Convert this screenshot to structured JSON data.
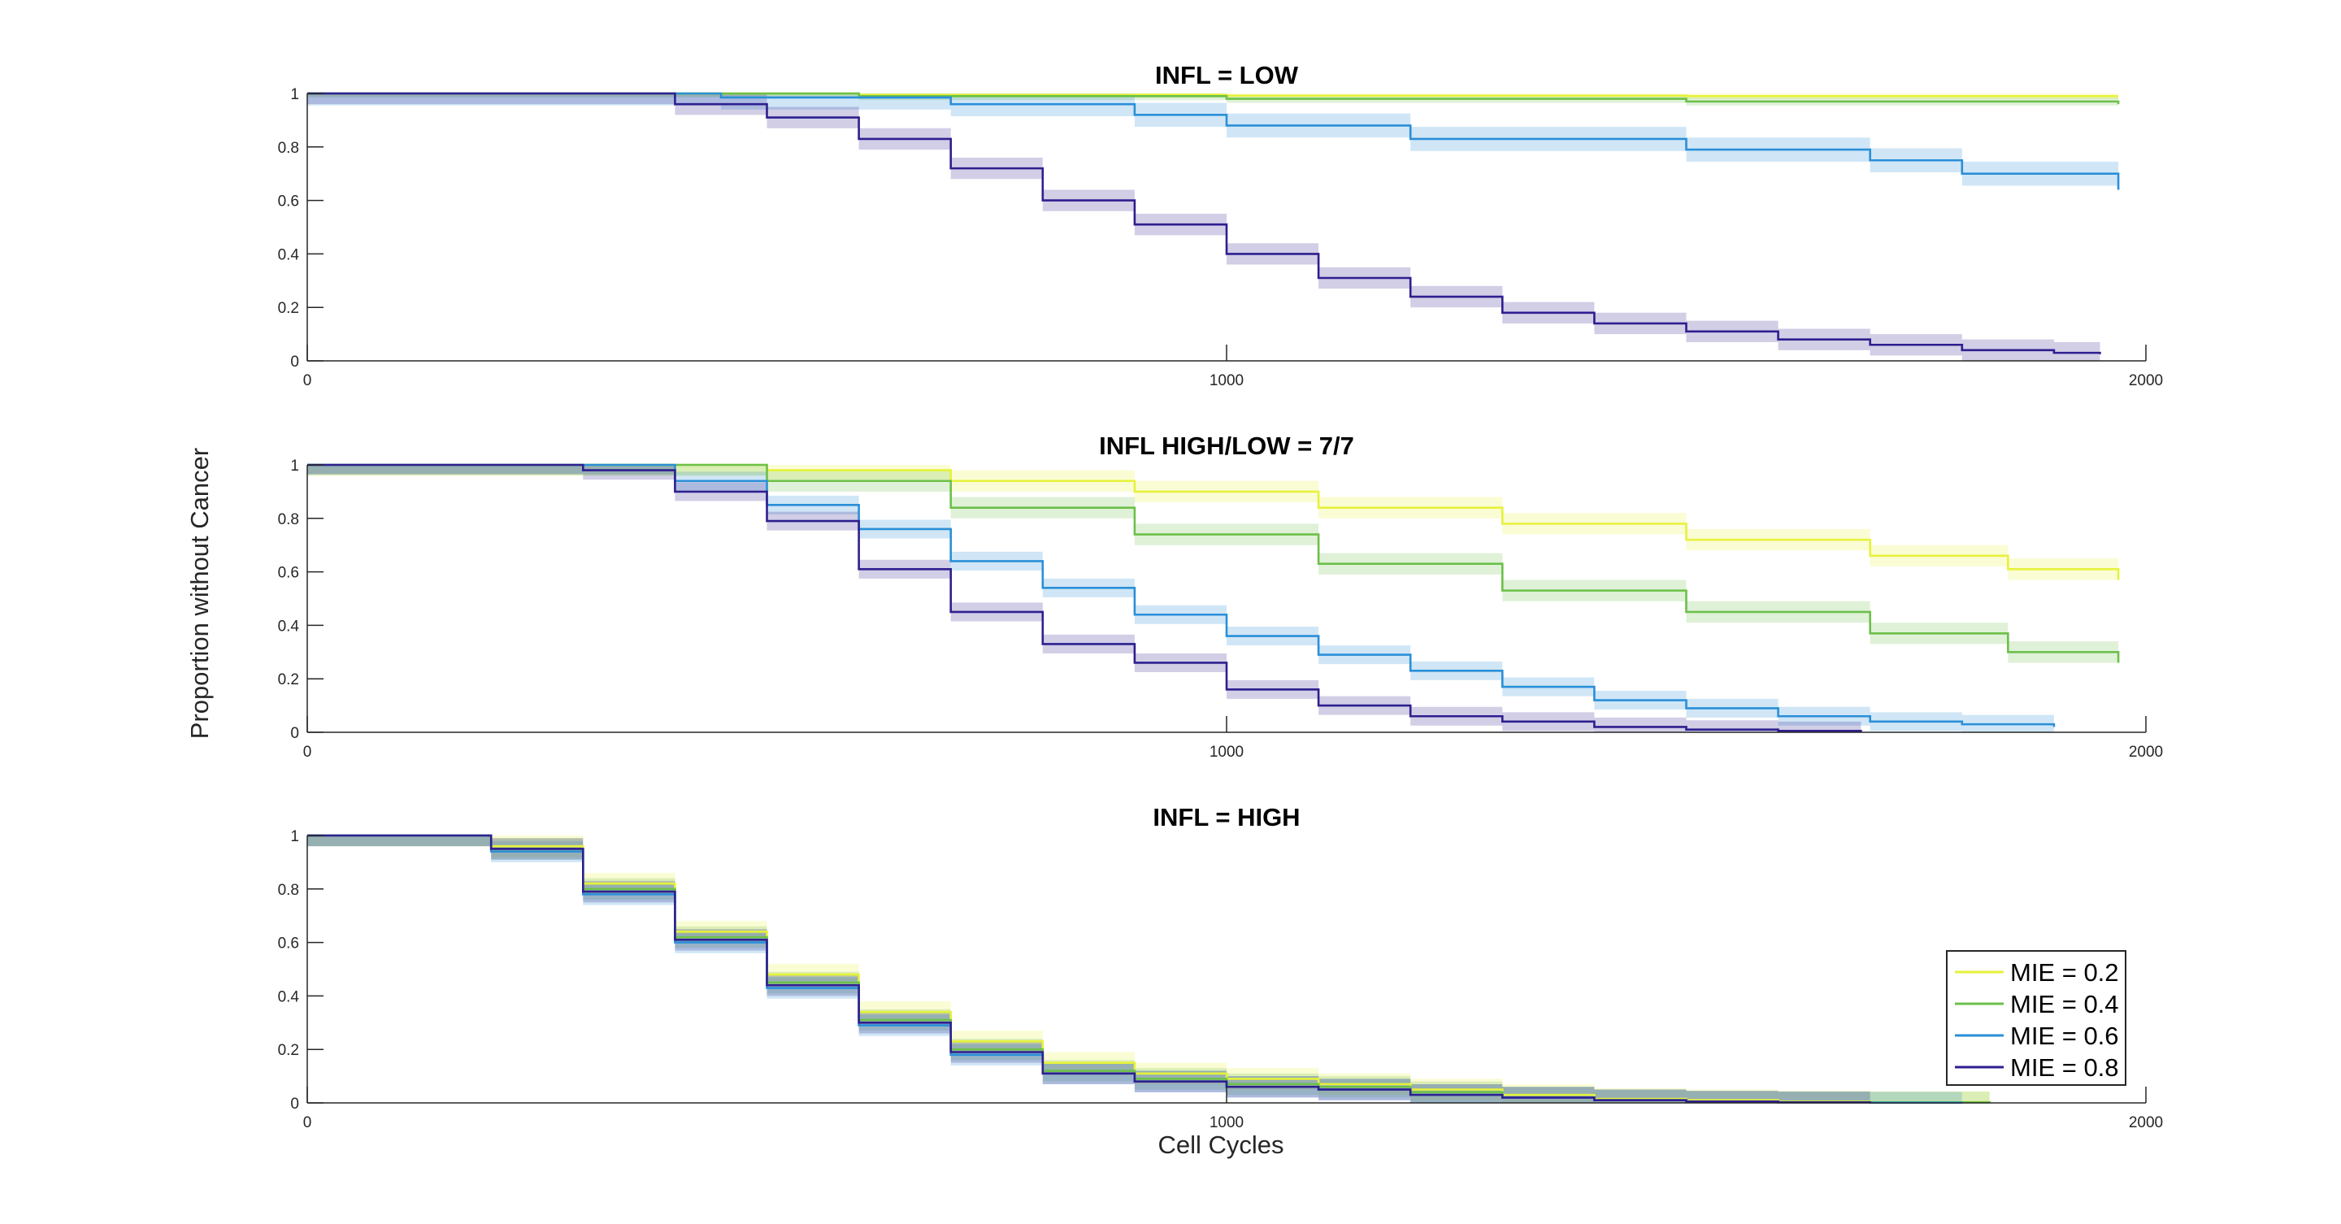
{
  "figure": {
    "ylabel": "Proportion without Cancer",
    "xlabel": "Cell Cycles"
  },
  "colors": {
    "MIE = 0.2": "#e6f23a",
    "MIE = 0.4": "#6cc04a",
    "MIE = 0.6": "#2a8fd8",
    "MIE = 0.8": "#2e1f8f"
  },
  "legend": {
    "location": "bottom-right of bottom panel",
    "entries": [
      "MIE = 0.2",
      "MIE = 0.4",
      "MIE = 0.6",
      "MIE = 0.8"
    ]
  },
  "chart_data": [
    {
      "type": "line",
      "title": "INFL = LOW",
      "xlim": [
        0,
        2000
      ],
      "ylim": [
        0,
        1
      ],
      "xticks": [
        "0",
        "1000",
        "2000"
      ],
      "yticks": [
        "0",
        "0.2",
        "0.4",
        "0.6",
        "0.8",
        "1"
      ],
      "series": [
        {
          "name": "MIE = 0.2",
          "x": [
            0,
            300,
            600,
            1000,
            1500,
            1970
          ],
          "y": [
            1,
            1,
            0.995,
            0.992,
            0.99,
            0.99
          ],
          "band": 0.01
        },
        {
          "name": "MIE = 0.4",
          "x": [
            0,
            300,
            600,
            1000,
            1500,
            1970
          ],
          "y": [
            1,
            1,
            0.99,
            0.98,
            0.97,
            0.96
          ],
          "band": 0.015
        },
        {
          "name": "MIE = 0.6",
          "x": [
            0,
            300,
            450,
            700,
            900,
            1000,
            1200,
            1500,
            1700,
            1800,
            1970
          ],
          "y": [
            1,
            1,
            0.985,
            0.96,
            0.92,
            0.88,
            0.83,
            0.79,
            0.75,
            0.7,
            0.64
          ],
          "band": 0.045
        },
        {
          "name": "MIE = 0.8",
          "x": [
            0,
            300,
            400,
            500,
            600,
            700,
            800,
            900,
            1000,
            1100,
            1200,
            1300,
            1400,
            1500,
            1600,
            1700,
            1800,
            1900,
            1950
          ],
          "y": [
            1,
            1,
            0.96,
            0.91,
            0.83,
            0.72,
            0.6,
            0.51,
            0.4,
            0.31,
            0.24,
            0.18,
            0.14,
            0.11,
            0.08,
            0.06,
            0.04,
            0.03,
            0.025
          ],
          "band": 0.04
        }
      ]
    },
    {
      "type": "line",
      "title": "INFL HIGH/LOW = 7/7",
      "xlim": [
        0,
        2000
      ],
      "ylim": [
        0,
        1
      ],
      "xticks": [
        "0",
        "1000",
        "2000"
      ],
      "yticks": [
        "0",
        "0.2",
        "0.4",
        "0.6",
        "0.8",
        "1"
      ],
      "series": [
        {
          "name": "MIE = 0.2",
          "x": [
            0,
            330,
            500,
            700,
            900,
            1100,
            1300,
            1500,
            1700,
            1850,
            1970
          ],
          "y": [
            1,
            1,
            0.98,
            0.94,
            0.9,
            0.84,
            0.78,
            0.72,
            0.66,
            0.61,
            0.57
          ],
          "band": 0.04
        },
        {
          "name": "MIE = 0.4",
          "x": [
            0,
            330,
            500,
            700,
            900,
            1100,
            1300,
            1500,
            1700,
            1850,
            1970
          ],
          "y": [
            1,
            1,
            0.94,
            0.84,
            0.74,
            0.63,
            0.53,
            0.45,
            0.37,
            0.3,
            0.26
          ],
          "band": 0.04
        },
        {
          "name": "MIE = 0.6",
          "x": [
            0,
            300,
            400,
            500,
            600,
            700,
            800,
            900,
            1000,
            1100,
            1200,
            1300,
            1400,
            1500,
            1600,
            1700,
            1800,
            1900
          ],
          "y": [
            1,
            1,
            0.94,
            0.85,
            0.76,
            0.64,
            0.54,
            0.44,
            0.36,
            0.29,
            0.23,
            0.17,
            0.12,
            0.09,
            0.06,
            0.04,
            0.03,
            0.02
          ],
          "band": 0.035
        },
        {
          "name": "MIE = 0.8",
          "x": [
            0,
            170,
            300,
            400,
            500,
            600,
            700,
            800,
            900,
            1000,
            1100,
            1200,
            1300,
            1400,
            1500,
            1600,
            1690
          ],
          "y": [
            1,
            1,
            0.98,
            0.9,
            0.79,
            0.61,
            0.45,
            0.33,
            0.26,
            0.16,
            0.1,
            0.06,
            0.04,
            0.02,
            0.01,
            0.005,
            0.0
          ],
          "band": 0.035
        }
      ]
    },
    {
      "type": "line",
      "title": "INFL = HIGH",
      "xlim": [
        0,
        2000
      ],
      "ylim": [
        0,
        1
      ],
      "xticks": [
        "0",
        "1000",
        "2000"
      ],
      "yticks": [
        "0",
        "0.2",
        "0.4",
        "0.6",
        "0.8",
        "1"
      ],
      "series": [
        {
          "name": "MIE = 0.2",
          "x": [
            0,
            120,
            200,
            300,
            400,
            500,
            600,
            700,
            800,
            900,
            1000,
            1100,
            1200,
            1300,
            1400,
            1500,
            1600,
            1700,
            1830
          ],
          "y": [
            1,
            1,
            0.96,
            0.82,
            0.64,
            0.48,
            0.34,
            0.23,
            0.15,
            0.11,
            0.09,
            0.07,
            0.05,
            0.03,
            0.015,
            0.01,
            0.005,
            0.003,
            0.0
          ],
          "band": 0.04
        },
        {
          "name": "MIE = 0.4",
          "x": [
            0,
            120,
            200,
            300,
            400,
            500,
            600,
            700,
            800,
            900,
            1000,
            1100,
            1200,
            1300,
            1400,
            1500,
            1600,
            1700,
            1830
          ],
          "y": [
            1,
            1,
            0.95,
            0.8,
            0.62,
            0.45,
            0.31,
            0.2,
            0.12,
            0.09,
            0.07,
            0.06,
            0.04,
            0.02,
            0.01,
            0.005,
            0.003,
            0.002,
            0.0
          ],
          "band": 0.04
        },
        {
          "name": "MIE = 0.6",
          "x": [
            0,
            120,
            200,
            300,
            400,
            500,
            600,
            700,
            800,
            900,
            1000,
            1100,
            1200,
            1300,
            1400,
            1500,
            1600,
            1700,
            1800
          ],
          "y": [
            1,
            1,
            0.94,
            0.78,
            0.6,
            0.43,
            0.29,
            0.18,
            0.11,
            0.08,
            0.06,
            0.05,
            0.03,
            0.02,
            0.01,
            0.005,
            0.002,
            0.001,
            0.0
          ],
          "band": 0.04
        },
        {
          "name": "MIE = 0.8",
          "x": [
            0,
            120,
            200,
            300,
            400,
            500,
            600,
            700,
            800,
            900,
            1000,
            1100,
            1200,
            1300,
            1400,
            1500,
            1600,
            1700
          ],
          "y": [
            1,
            1,
            0.95,
            0.79,
            0.61,
            0.44,
            0.3,
            0.19,
            0.11,
            0.08,
            0.06,
            0.05,
            0.03,
            0.02,
            0.01,
            0.005,
            0.002,
            0.0
          ],
          "band": 0.04
        }
      ]
    }
  ]
}
